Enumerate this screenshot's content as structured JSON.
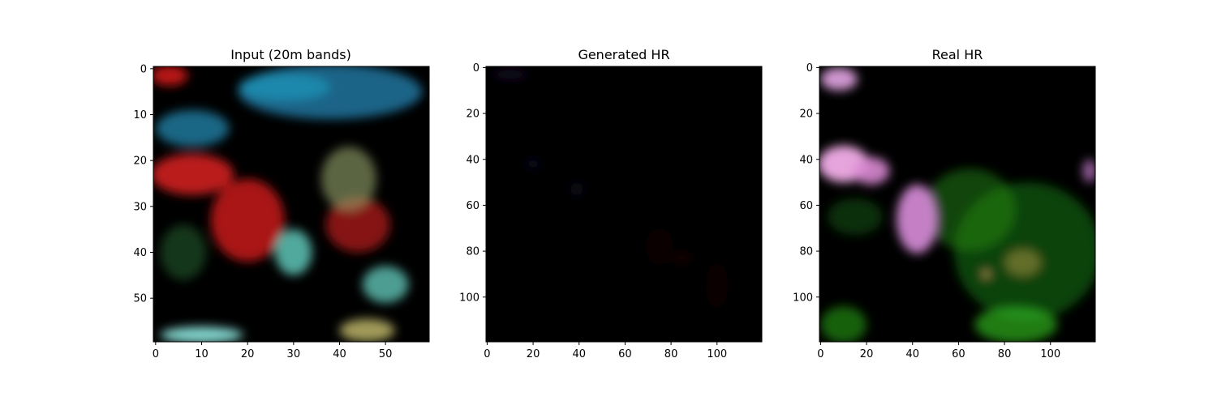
{
  "chart_data": [
    {
      "type": "heatmap",
      "title": "Input (20m bands)",
      "xlim": [
        0,
        60
      ],
      "ylim": [
        60,
        0
      ],
      "xticks": [
        0,
        10,
        20,
        30,
        40,
        50
      ],
      "yticks": [
        0,
        10,
        20,
        30,
        40,
        50
      ],
      "background": "#000000",
      "regions": [
        {
          "kind": "ellipse",
          "color": "#1c6f96",
          "cx": 38,
          "cy": 5,
          "rx": 20,
          "ry": 6,
          "opacity": 0.9
        },
        {
          "kind": "ellipse",
          "color": "#21a6c8",
          "cx": 28,
          "cy": 4,
          "rx": 10,
          "ry": 3,
          "opacity": 0.55
        },
        {
          "kind": "ellipse",
          "color": "#1e7fa6",
          "cx": 8,
          "cy": 13,
          "rx": 8,
          "ry": 4,
          "opacity": 0.8
        },
        {
          "kind": "ellipse",
          "color": "#c41313",
          "cx": 3,
          "cy": 1.5,
          "rx": 4,
          "ry": 2.2,
          "opacity": 0.95
        },
        {
          "kind": "ellipse",
          "color": "#c41a1a",
          "cx": 8,
          "cy": 23,
          "rx": 9,
          "ry": 4.5,
          "opacity": 0.95
        },
        {
          "kind": "ellipse",
          "color": "#b31515",
          "cx": 20,
          "cy": 33,
          "rx": 8,
          "ry": 9,
          "opacity": 0.95
        },
        {
          "kind": "ellipse",
          "color": "#a81515",
          "cx": 44,
          "cy": 34,
          "rx": 7,
          "ry": 6,
          "opacity": 0.8
        },
        {
          "kind": "ellipse",
          "color": "#9aa86e",
          "cx": 42,
          "cy": 24,
          "rx": 6,
          "ry": 7,
          "opacity": 0.6
        },
        {
          "kind": "ellipse",
          "color": "#6ee0d0",
          "cx": 30,
          "cy": 40,
          "rx": 4,
          "ry": 5,
          "opacity": 0.75
        },
        {
          "kind": "ellipse",
          "color": "#6ee0d0",
          "cx": 50,
          "cy": 47,
          "rx": 5,
          "ry": 4,
          "opacity": 0.7
        },
        {
          "kind": "ellipse",
          "color": "#8fe8e0",
          "cx": 10,
          "cy": 58,
          "rx": 9,
          "ry": 1.8,
          "opacity": 0.9
        },
        {
          "kind": "ellipse",
          "color": "#c8c070",
          "cx": 46,
          "cy": 57,
          "rx": 6,
          "ry": 2.5,
          "opacity": 0.8
        },
        {
          "kind": "ellipse",
          "color": "#2f7a3a",
          "cx": 6,
          "cy": 40,
          "rx": 5,
          "ry": 6,
          "opacity": 0.45
        }
      ]
    },
    {
      "type": "heatmap",
      "title": "Generated HR",
      "xlim": [
        0,
        120
      ],
      "ylim": [
        120,
        0
      ],
      "xticks": [
        0,
        20,
        40,
        60,
        80,
        100
      ],
      "yticks": [
        0,
        20,
        40,
        60,
        80,
        100
      ],
      "background": "#000000",
      "regions": [
        {
          "kind": "ellipse",
          "color": "#1a0a2a",
          "cx": 10,
          "cy": 3,
          "rx": 8,
          "ry": 2,
          "opacity": 0.8
        },
        {
          "kind": "ellipse",
          "color": "#0e0e2e",
          "cx": 20,
          "cy": 42,
          "rx": 3,
          "ry": 2,
          "opacity": 0.8
        },
        {
          "kind": "ellipse",
          "color": "#0c0c28",
          "cx": 39,
          "cy": 53,
          "rx": 3,
          "ry": 3,
          "opacity": 0.7
        },
        {
          "kind": "ellipse",
          "color": "#1c0707",
          "cx": 85,
          "cy": 83,
          "rx": 4,
          "ry": 3,
          "opacity": 0.7
        },
        {
          "kind": "ellipse",
          "color": "#140606",
          "cx": 75,
          "cy": 78,
          "rx": 6,
          "ry": 8,
          "opacity": 0.6
        },
        {
          "kind": "ellipse",
          "color": "#140606",
          "cx": 100,
          "cy": 95,
          "rx": 5,
          "ry": 10,
          "opacity": 0.5
        }
      ]
    },
    {
      "type": "heatmap",
      "title": "Real HR",
      "xlim": [
        0,
        120
      ],
      "ylim": [
        120,
        0
      ],
      "xticks": [
        0,
        20,
        40,
        60,
        80,
        100
      ],
      "yticks": [
        0,
        20,
        40,
        60,
        80,
        100
      ],
      "background": "#000000",
      "regions": [
        {
          "kind": "ellipse",
          "color": "#1a7a12",
          "cx": 90,
          "cy": 80,
          "rx": 32,
          "ry": 30,
          "opacity": 0.55
        },
        {
          "kind": "ellipse",
          "color": "#1f8a14",
          "cx": 65,
          "cy": 62,
          "rx": 20,
          "ry": 18,
          "opacity": 0.5
        },
        {
          "kind": "ellipse",
          "color": "#2fb01e",
          "cx": 85,
          "cy": 112,
          "rx": 18,
          "ry": 8,
          "opacity": 0.7
        },
        {
          "kind": "ellipse",
          "color": "#24a018",
          "cx": 10,
          "cy": 112,
          "rx": 10,
          "ry": 8,
          "opacity": 0.6
        },
        {
          "kind": "ellipse",
          "color": "#145e0f",
          "cx": 15,
          "cy": 65,
          "rx": 12,
          "ry": 8,
          "opacity": 0.5
        },
        {
          "kind": "ellipse",
          "color": "#f2aee8",
          "cx": 10,
          "cy": 42,
          "rx": 11,
          "ry": 8,
          "opacity": 0.95
        },
        {
          "kind": "ellipse",
          "color": "#d888d2",
          "cx": 22,
          "cy": 45,
          "rx": 8,
          "ry": 6,
          "opacity": 0.9
        },
        {
          "kind": "ellipse",
          "color": "#cf86d0",
          "cx": 42,
          "cy": 66,
          "rx": 9,
          "ry": 15,
          "opacity": 0.95
        },
        {
          "kind": "ellipse",
          "color": "#e4a6e6",
          "cx": 8,
          "cy": 5,
          "rx": 8,
          "ry": 5,
          "opacity": 0.9
        },
        {
          "kind": "ellipse",
          "color": "#b070b8",
          "cx": 117,
          "cy": 45,
          "rx": 3,
          "ry": 5,
          "opacity": 0.85
        },
        {
          "kind": "ellipse",
          "color": "#b89a4a",
          "cx": 88,
          "cy": 85,
          "rx": 8,
          "ry": 6,
          "opacity": 0.5
        },
        {
          "kind": "ellipse",
          "color": "#c8a060",
          "cx": 72,
          "cy": 90,
          "rx": 2,
          "ry": 2,
          "opacity": 0.8
        }
      ]
    }
  ]
}
